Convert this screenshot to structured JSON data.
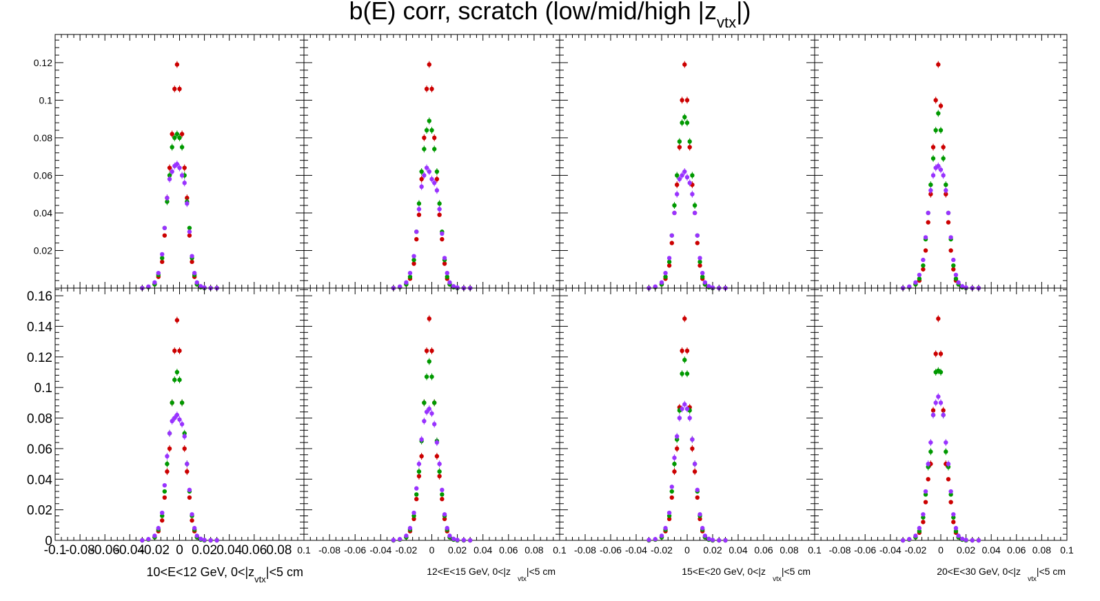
{
  "title": {
    "main": "b(E) corr, scratch  (low/mid/high |z",
    "sub": "vtx",
    "close": "|)"
  },
  "colors": {
    "low": "#cc0000",
    "mid": "#009900",
    "high": "#9933ff"
  },
  "panel_labels": [
    {
      "main": "10<E<12 GeV, 0<|z",
      "sub": "vtx",
      "tail": "|<5 cm"
    },
    {
      "main": "12<E<15 GeV, 0<|z",
      "sub": "vtx",
      "tail": "|<5 cm"
    },
    {
      "main": "15<E<20 GeV, 0<|z",
      "sub": "vtx",
      "tail": "|<5 cm"
    },
    {
      "main": "20<E<30 GeV, 0<|z",
      "sub": "vtx",
      "tail": "|<5 cm"
    }
  ],
  "chart_data": {
    "type": "scatter",
    "layout": "2 rows x 4 columns, shared axes",
    "xlim": [
      -0.1,
      0.1
    ],
    "top_ylim": [
      0,
      0.135
    ],
    "bottom_ylim": [
      0,
      0.165
    ],
    "x_ticks_first": [
      "-0.1",
      "-0.08",
      "-0.06",
      "-0.04",
      "-0.02",
      "0",
      "0.02",
      "0.04",
      "0.06",
      "0.08"
    ],
    "x_ticks_other": [
      "0.1",
      "-0.08",
      "-0.06",
      "-0.04",
      "-0.02",
      "0",
      "0.02",
      "0.04",
      "0.06",
      "0.08"
    ],
    "x_ticks_last": [
      "0.1",
      "-0.08",
      "-0.06",
      "-0.04",
      "-0.02",
      "0",
      "0.02",
      "0.04",
      "0.06",
      "0.08",
      "0.1"
    ],
    "y_ticks_top": [
      "0.02",
      "0.04",
      "0.06",
      "0.08",
      "0.1",
      "0.12"
    ],
    "y_ticks_bottom": [
      "0",
      "0.02",
      "0.04",
      "0.06",
      "0.08",
      "0.1",
      "0.12",
      "0.14",
      "0.16"
    ],
    "x": [
      -0.03,
      -0.025,
      -0.02,
      -0.017,
      -0.014,
      -0.012,
      -0.01,
      -0.008,
      -0.006,
      -0.004,
      -0.002,
      0,
      0.002,
      0.004,
      0.006,
      0.008,
      0.01,
      0.012,
      0.014,
      0.017,
      0.02,
      0.025,
      0.03
    ],
    "panels": [
      {
        "row": "top",
        "col": 1,
        "series": [
          {
            "name": "low",
            "values": [
              0,
              0.0005,
              0.002,
              0.006,
              0.014,
              0.028,
              0.048,
              0.064,
              0.082,
              0.106,
              0.119,
              0.106,
              0.082,
              0.064,
              0.048,
              0.028,
              0.014,
              0.006,
              0.002,
              0.0005,
              0,
              0,
              0
            ]
          },
          {
            "name": "mid",
            "values": [
              0,
              0.0005,
              0.002,
              0.007,
              0.016,
              0.032,
              0.046,
              0.06,
              0.075,
              0.08,
              0.082,
              0.08,
              0.075,
              0.06,
              0.046,
              0.032,
              0.016,
              0.007,
              0.002,
              0.0005,
              0,
              0,
              0
            ]
          },
          {
            "name": "high",
            "values": [
              0,
              0.0008,
              0.003,
              0.008,
              0.018,
              0.032,
              0.048,
              0.058,
              0.062,
              0.065,
              0.066,
              0.064,
              0.06,
              0.056,
              0.045,
              0.03,
              0.017,
              0.008,
              0.003,
              0.001,
              0.0003,
              0,
              0
            ]
          }
        ]
      },
      {
        "row": "top",
        "col": 2,
        "series": [
          {
            "name": "low",
            "values": [
              0,
              0.0005,
              0.002,
              0.005,
              0.013,
              0.026,
              0.039,
              0.058,
              0.08,
              0.106,
              0.119,
              0.106,
              0.08,
              0.058,
              0.039,
              0.026,
              0.013,
              0.005,
              0.002,
              0.0005,
              0,
              0,
              0
            ]
          },
          {
            "name": "mid",
            "values": [
              0,
              0.0005,
              0.002,
              0.006,
              0.015,
              0.03,
              0.045,
              0.062,
              0.074,
              0.084,
              0.089,
              0.084,
              0.074,
              0.062,
              0.045,
              0.03,
              0.015,
              0.006,
              0.002,
              0.0005,
              0,
              0,
              0
            ]
          },
          {
            "name": "high",
            "values": [
              0,
              0.0008,
              0.003,
              0.008,
              0.017,
              0.03,
              0.042,
              0.054,
              0.06,
              0.064,
              0.062,
              0.058,
              0.056,
              0.052,
              0.042,
              0.029,
              0.016,
              0.008,
              0.003,
              0.001,
              0.0003,
              0,
              0
            ]
          }
        ]
      },
      {
        "row": "top",
        "col": 3,
        "series": [
          {
            "name": "low",
            "values": [
              0,
              0.0005,
              0.002,
              0.005,
              0.012,
              0.024,
              0.04,
              0.055,
              0.075,
              0.1,
              0.119,
              0.1,
              0.075,
              0.055,
              0.04,
              0.024,
              0.012,
              0.005,
              0.002,
              0.0005,
              0,
              0,
              0
            ]
          },
          {
            "name": "mid",
            "values": [
              0,
              0.0005,
              0.002,
              0.006,
              0.014,
              0.028,
              0.044,
              0.06,
              0.078,
              0.088,
              0.091,
              0.088,
              0.078,
              0.06,
              0.044,
              0.028,
              0.014,
              0.006,
              0.002,
              0.0005,
              0,
              0,
              0
            ]
          },
          {
            "name": "high",
            "values": [
              0,
              0.0008,
              0.003,
              0.008,
              0.016,
              0.028,
              0.04,
              0.05,
              0.058,
              0.06,
              0.062,
              0.059,
              0.056,
              0.05,
              0.04,
              0.028,
              0.016,
              0.008,
              0.003,
              0.001,
              0.0003,
              0,
              0
            ]
          }
        ]
      },
      {
        "row": "top",
        "col": 4,
        "series": [
          {
            "name": "low",
            "values": [
              0,
              0.0005,
              0.002,
              0.004,
              0.01,
              0.02,
              0.035,
              0.05,
              0.075,
              0.1,
              0.119,
              0.097,
              0.075,
              0.05,
              0.035,
              0.02,
              0.01,
              0.004,
              0.002,
              0.0005,
              0,
              0,
              0
            ]
          },
          {
            "name": "mid",
            "values": [
              0,
              0.0005,
              0.002,
              0.005,
              0.012,
              0.026,
              0.04,
              0.055,
              0.069,
              0.084,
              0.093,
              0.084,
              0.069,
              0.055,
              0.04,
              0.026,
              0.012,
              0.005,
              0.002,
              0.0005,
              0,
              0,
              0
            ]
          },
          {
            "name": "high",
            "values": [
              0,
              0.0008,
              0.003,
              0.007,
              0.015,
              0.027,
              0.04,
              0.052,
              0.06,
              0.064,
              0.065,
              0.063,
              0.06,
              0.052,
              0.04,
              0.027,
              0.015,
              0.007,
              0.003,
              0.001,
              0.0003,
              0,
              0
            ]
          }
        ]
      },
      {
        "row": "bottom",
        "col": 1,
        "series": [
          {
            "name": "low",
            "values": [
              0,
              0.0005,
              0.002,
              0.006,
              0.013,
              0.028,
              0.045,
              0.06,
              0.09,
              0.124,
              0.144,
              0.124,
              0.09,
              0.06,
              0.045,
              0.028,
              0.013,
              0.006,
              0.002,
              0.0005,
              0,
              0,
              0
            ]
          },
          {
            "name": "mid",
            "values": [
              0,
              0.0005,
              0.002,
              0.007,
              0.016,
              0.032,
              0.05,
              0.07,
              0.09,
              0.105,
              0.11,
              0.105,
              0.09,
              0.07,
              0.05,
              0.032,
              0.016,
              0.007,
              0.002,
              0.0005,
              0,
              0,
              0
            ]
          },
          {
            "name": "high",
            "values": [
              0,
              0.0008,
              0.003,
              0.008,
              0.018,
              0.036,
              0.055,
              0.07,
              0.078,
              0.08,
              0.082,
              0.079,
              0.076,
              0.068,
              0.05,
              0.033,
              0.017,
              0.008,
              0.003,
              0.001,
              0.0003,
              0,
              0
            ]
          }
        ]
      },
      {
        "row": "bottom",
        "col": 2,
        "series": [
          {
            "name": "low",
            "values": [
              0,
              0.0005,
              0.002,
              0.006,
              0.014,
              0.027,
              0.042,
              0.055,
              0.09,
              0.124,
              0.145,
              0.124,
              0.09,
              0.055,
              0.042,
              0.027,
              0.014,
              0.006,
              0.002,
              0.0005,
              0,
              0,
              0
            ]
          },
          {
            "name": "mid",
            "values": [
              0,
              0.0005,
              0.002,
              0.007,
              0.016,
              0.03,
              0.045,
              0.065,
              0.09,
              0.107,
              0.117,
              0.107,
              0.09,
              0.065,
              0.045,
              0.03,
              0.016,
              0.007,
              0.002,
              0.0005,
              0,
              0,
              0
            ]
          },
          {
            "name": "high",
            "values": [
              0.0002,
              0.0008,
              0.003,
              0.008,
              0.018,
              0.034,
              0.05,
              0.066,
              0.078,
              0.084,
              0.086,
              0.083,
              0.076,
              0.064,
              0.05,
              0.033,
              0.017,
              0.008,
              0.003,
              0.001,
              0.0003,
              0.0002,
              0
            ]
          }
        ]
      },
      {
        "row": "bottom",
        "col": 3,
        "series": [
          {
            "name": "low",
            "values": [
              0,
              0.0005,
              0.002,
              0.006,
              0.014,
              0.028,
              0.045,
              0.06,
              0.087,
              0.124,
              0.145,
              0.124,
              0.087,
              0.06,
              0.045,
              0.028,
              0.014,
              0.006,
              0.002,
              0.0005,
              0,
              0,
              0
            ]
          },
          {
            "name": "mid",
            "values": [
              0,
              0.0005,
              0.002,
              0.007,
              0.016,
              0.032,
              0.05,
              0.066,
              0.085,
              0.109,
              0.118,
              0.109,
              0.085,
              0.066,
              0.05,
              0.032,
              0.016,
              0.007,
              0.002,
              0.0005,
              0,
              0,
              0
            ]
          },
          {
            "name": "high",
            "values": [
              0.0003,
              0.0008,
              0.003,
              0.008,
              0.018,
              0.035,
              0.054,
              0.068,
              0.08,
              0.086,
              0.089,
              0.086,
              0.08,
              0.066,
              0.05,
              0.033,
              0.017,
              0.008,
              0.003,
              0.001,
              0.0003,
              0,
              0
            ]
          }
        ]
      },
      {
        "row": "bottom",
        "col": 4,
        "series": [
          {
            "name": "low",
            "values": [
              0,
              0.0005,
              0.002,
              0.005,
              0.012,
              0.025,
              0.04,
              0.05,
              0.085,
              0.122,
              0.145,
              0.122,
              0.085,
              0.05,
              0.04,
              0.025,
              0.012,
              0.005,
              0.002,
              0.0005,
              0,
              0,
              0
            ]
          },
          {
            "name": "mid",
            "values": [
              0,
              0.0005,
              0.002,
              0.006,
              0.015,
              0.03,
              0.048,
              0.058,
              0.082,
              0.11,
              0.111,
              0.11,
              0.082,
              0.058,
              0.048,
              0.03,
              0.015,
              0.006,
              0.002,
              0.0005,
              0,
              0,
              0
            ]
          },
          {
            "name": "high",
            "values": [
              0,
              0.0008,
              0.003,
              0.008,
              0.017,
              0.032,
              0.05,
              0.064,
              0.082,
              0.09,
              0.094,
              0.09,
              0.082,
              0.064,
              0.05,
              0.032,
              0.017,
              0.008,
              0.003,
              0.001,
              0.0003,
              0,
              0
            ]
          }
        ]
      }
    ]
  }
}
